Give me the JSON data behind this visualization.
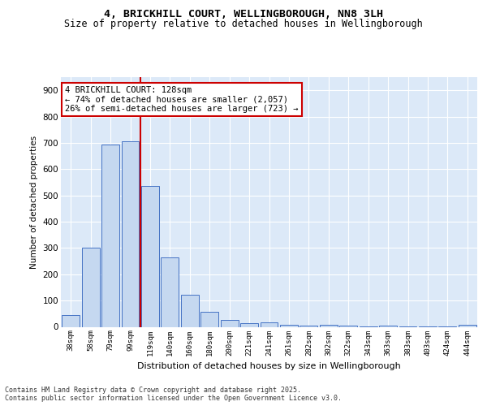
{
  "title_line1": "4, BRICKHILL COURT, WELLINGBOROUGH, NN8 3LH",
  "title_line2": "Size of property relative to detached houses in Wellingborough",
  "xlabel": "Distribution of detached houses by size in Wellingborough",
  "ylabel": "Number of detached properties",
  "bar_labels": [
    "38sqm",
    "58sqm",
    "79sqm",
    "99sqm",
    "119sqm",
    "140sqm",
    "160sqm",
    "180sqm",
    "200sqm",
    "221sqm",
    "241sqm",
    "261sqm",
    "282sqm",
    "302sqm",
    "322sqm",
    "343sqm",
    "363sqm",
    "383sqm",
    "403sqm",
    "424sqm",
    "444sqm"
  ],
  "bar_values": [
    45,
    300,
    693,
    706,
    537,
    265,
    122,
    58,
    25,
    15,
    18,
    7,
    5,
    9,
    5,
    2,
    6,
    2,
    2,
    1,
    7
  ],
  "bar_color": "#c5d8f0",
  "bar_edge_color": "#4472c4",
  "vline_color": "#cc0000",
  "annotation_text": "4 BRICKHILL COURT: 128sqm\n← 74% of detached houses are smaller (2,057)\n26% of semi-detached houses are larger (723) →",
  "annotation_box_color": "#cc0000",
  "background_color": "#dce9f8",
  "grid_color": "#ffffff",
  "footnote": "Contains HM Land Registry data © Crown copyright and database right 2025.\nContains public sector information licensed under the Open Government Licence v3.0.",
  "ylim": [
    0,
    950
  ],
  "yticks": [
    0,
    100,
    200,
    300,
    400,
    500,
    600,
    700,
    800,
    900
  ]
}
